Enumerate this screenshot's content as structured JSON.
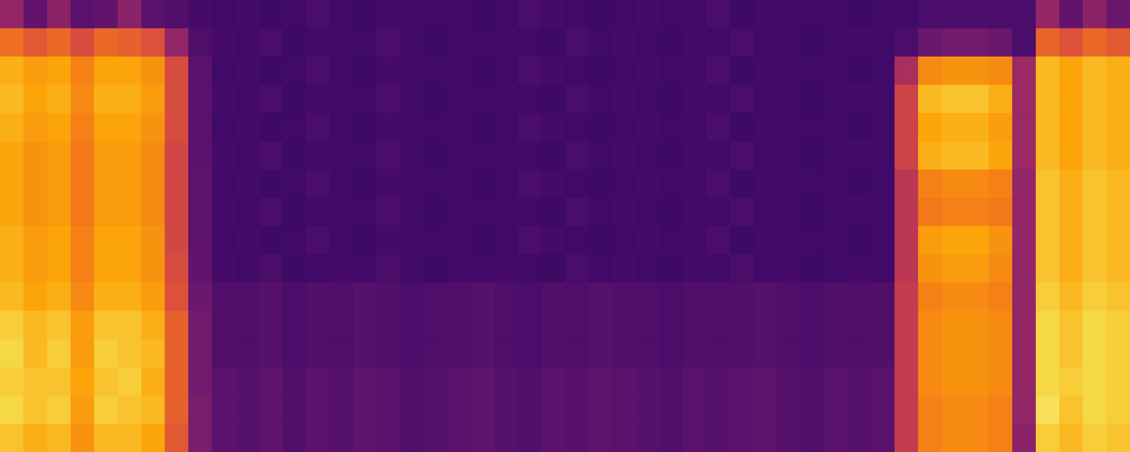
{
  "chart_data": {
    "type": "heatmap",
    "grid": false,
    "tick_labels": false,
    "color_range": [
      0,
      100
    ],
    "cells": [
      [
        40,
        28,
        38,
        26,
        28,
        38,
        26,
        24,
        21,
        20,
        21,
        19,
        20,
        22,
        20,
        19,
        21,
        20,
        20,
        21,
        19,
        20,
        22,
        21,
        20,
        19,
        20,
        21,
        20,
        20,
        22,
        19,
        21,
        20,
        20,
        21,
        19,
        20,
        20,
        22,
        22,
        22,
        22,
        22,
        40,
        28,
        38,
        30
      ],
      [
        68,
        62,
        66,
        58,
        66,
        64,
        60,
        40,
        23,
        21,
        20,
        22,
        19,
        20,
        21,
        20,
        22,
        20,
        19,
        21,
        20,
        21,
        20,
        19,
        22,
        20,
        21,
        20,
        19,
        21,
        20,
        22,
        20,
        21,
        19,
        20,
        21,
        20,
        22,
        30,
        32,
        32,
        30,
        22,
        65,
        60,
        66,
        62
      ],
      [
        82,
        78,
        80,
        72,
        80,
        80,
        76,
        58,
        26,
        20,
        21,
        19,
        20,
        22,
        20,
        19,
        21,
        20,
        20,
        21,
        19,
        20,
        22,
        21,
        20,
        19,
        20,
        21,
        20,
        20,
        22,
        19,
        21,
        20,
        20,
        21,
        19,
        20,
        45,
        74,
        76,
        76,
        74,
        42,
        84,
        80,
        84,
        82
      ],
      [
        84,
        80,
        82,
        74,
        82,
        82,
        78,
        58,
        26,
        21,
        20,
        22,
        19,
        20,
        21,
        20,
        22,
        20,
        19,
        21,
        20,
        21,
        20,
        19,
        22,
        20,
        21,
        20,
        19,
        21,
        20,
        22,
        20,
        21,
        19,
        20,
        21,
        20,
        55,
        84,
        86,
        86,
        82,
        42,
        84,
        80,
        84,
        82
      ],
      [
        82,
        78,
        80,
        72,
        80,
        80,
        76,
        58,
        26,
        20,
        21,
        19,
        20,
        22,
        20,
        19,
        21,
        20,
        20,
        21,
        19,
        20,
        22,
        21,
        20,
        19,
        20,
        21,
        20,
        20,
        22,
        19,
        21,
        20,
        20,
        21,
        19,
        20,
        55,
        80,
        82,
        82,
        78,
        42,
        84,
        80,
        84,
        82
      ],
      [
        80,
        76,
        78,
        70,
        78,
        78,
        74,
        56,
        26,
        21,
        20,
        22,
        19,
        20,
        21,
        20,
        22,
        20,
        19,
        21,
        20,
        21,
        20,
        19,
        22,
        20,
        21,
        20,
        19,
        21,
        20,
        22,
        20,
        21,
        19,
        20,
        21,
        20,
        55,
        82,
        84,
        84,
        80,
        42,
        84,
        80,
        84,
        82
      ],
      [
        80,
        76,
        78,
        70,
        78,
        78,
        74,
        56,
        27,
        20,
        21,
        19,
        20,
        22,
        20,
        19,
        21,
        20,
        20,
        21,
        19,
        20,
        22,
        21,
        20,
        19,
        20,
        21,
        20,
        20,
        22,
        19,
        21,
        20,
        20,
        21,
        19,
        20,
        50,
        72,
        74,
        74,
        72,
        40,
        86,
        82,
        86,
        84
      ],
      [
        80,
        76,
        78,
        70,
        78,
        78,
        74,
        56,
        27,
        21,
        20,
        22,
        19,
        20,
        21,
        20,
        22,
        20,
        19,
        21,
        20,
        21,
        20,
        19,
        22,
        20,
        21,
        20,
        19,
        21,
        20,
        22,
        20,
        21,
        19,
        20,
        21,
        20,
        50,
        70,
        72,
        72,
        70,
        40,
        86,
        82,
        86,
        84
      ],
      [
        82,
        78,
        80,
        72,
        80,
        80,
        76,
        56,
        27,
        20,
        21,
        19,
        20,
        22,
        20,
        19,
        21,
        20,
        20,
        21,
        19,
        20,
        22,
        21,
        20,
        19,
        20,
        21,
        20,
        20,
        22,
        19,
        21,
        20,
        20,
        21,
        19,
        20,
        50,
        78,
        80,
        80,
        76,
        40,
        86,
        82,
        86,
        84
      ],
      [
        82,
        78,
        80,
        72,
        80,
        80,
        76,
        58,
        28,
        21,
        20,
        22,
        19,
        20,
        21,
        20,
        22,
        20,
        19,
        21,
        20,
        21,
        20,
        19,
        22,
        20,
        21,
        20,
        19,
        21,
        20,
        22,
        20,
        21,
        19,
        20,
        21,
        20,
        50,
        76,
        78,
        78,
        74,
        40,
        86,
        82,
        86,
        84
      ],
      [
        84,
        80,
        82,
        74,
        82,
        82,
        78,
        60,
        30,
        24,
        23,
        25,
        22,
        24,
        23,
        25,
        24,
        22,
        23,
        24,
        25,
        23,
        22,
        24,
        23,
        25,
        24,
        23,
        22,
        24,
        23,
        24,
        25,
        23,
        22,
        24,
        23,
        24,
        52,
        72,
        74,
        74,
        72,
        40,
        88,
        84,
        88,
        86
      ],
      [
        88,
        84,
        86,
        78,
        86,
        86,
        82,
        64,
        32,
        24,
        23,
        25,
        22,
        24,
        23,
        25,
        24,
        22,
        23,
        24,
        25,
        23,
        22,
        24,
        23,
        25,
        24,
        23,
        22,
        24,
        23,
        24,
        25,
        23,
        22,
        24,
        23,
        24,
        52,
        74,
        76,
        76,
        74,
        40,
        90,
        86,
        90,
        88
      ],
      [
        90,
        84,
        88,
        78,
        88,
        86,
        84,
        64,
        32,
        24,
        23,
        25,
        22,
        24,
        23,
        25,
        24,
        22,
        23,
        24,
        25,
        23,
        22,
        24,
        23,
        25,
        24,
        23,
        22,
        24,
        23,
        24,
        25,
        23,
        22,
        24,
        23,
        24,
        52,
        74,
        76,
        76,
        74,
        40,
        90,
        86,
        90,
        88
      ],
      [
        88,
        86,
        86,
        80,
        86,
        88,
        82,
        64,
        32,
        26,
        25,
        27,
        24,
        26,
        25,
        27,
        26,
        24,
        25,
        26,
        27,
        25,
        24,
        26,
        25,
        27,
        26,
        25,
        24,
        26,
        25,
        26,
        27,
        25,
        24,
        26,
        25,
        26,
        52,
        74,
        76,
        76,
        74,
        40,
        90,
        88,
        90,
        88
      ],
      [
        90,
        86,
        88,
        78,
        88,
        86,
        84,
        64,
        34,
        26,
        25,
        27,
        24,
        26,
        25,
        27,
        26,
        24,
        25,
        26,
        27,
        25,
        24,
        26,
        25,
        27,
        26,
        25,
        24,
        26,
        25,
        26,
        27,
        25,
        24,
        26,
        25,
        26,
        52,
        72,
        74,
        74,
        72,
        40,
        92,
        86,
        90,
        88
      ],
      [
        86,
        82,
        84,
        76,
        84,
        84,
        80,
        62,
        34,
        26,
        25,
        27,
        24,
        26,
        25,
        27,
        26,
        24,
        25,
        26,
        27,
        25,
        24,
        26,
        25,
        27,
        26,
        25,
        24,
        26,
        25,
        26,
        27,
        25,
        24,
        26,
        25,
        26,
        52,
        72,
        74,
        74,
        72,
        38,
        88,
        84,
        88,
        86
      ]
    ]
  }
}
